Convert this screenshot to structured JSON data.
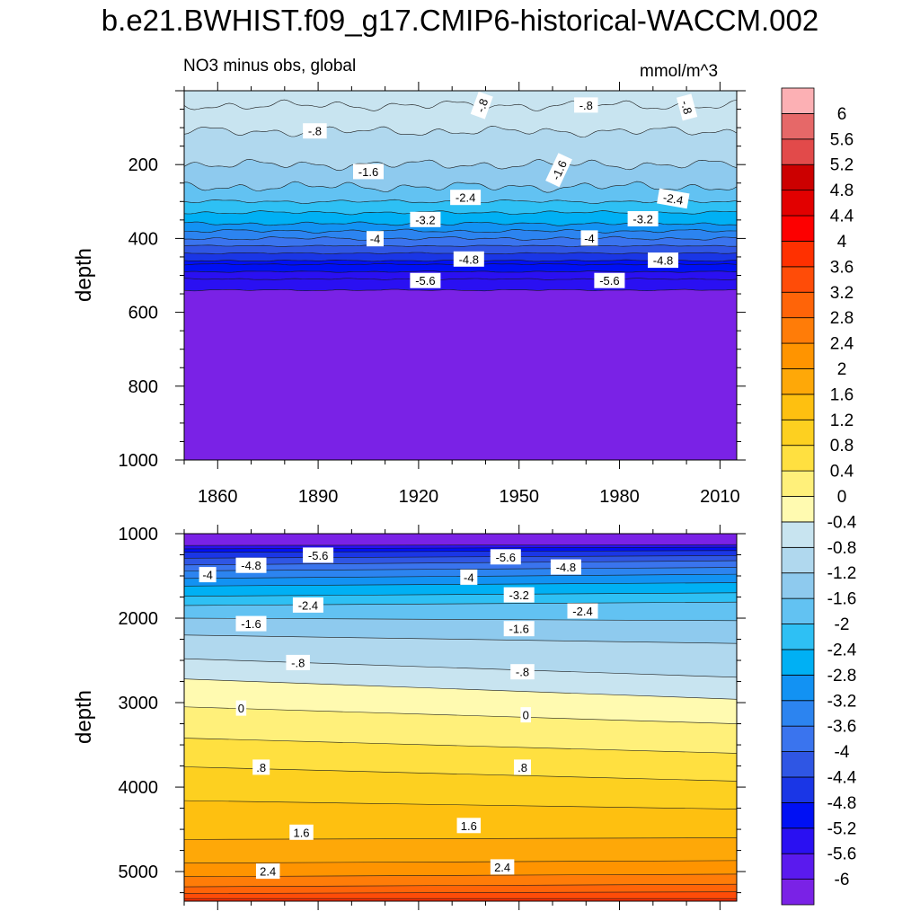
{
  "title": "b.e21.BWHIST.f09_g17.CMIP6-historical-WACCM.002",
  "subtitle_left": "NO3 minus obs, global",
  "subtitle_right": "mmol/m^3",
  "colorbar": {
    "colors": [
      "#7a22e6",
      "#5a1aee",
      "#2a10f2",
      "#0010f4",
      "#1a36e6",
      "#2f56e4",
      "#3a74ee",
      "#2c84f0",
      "#1292f3",
      "#00b0f4",
      "#2ec0f4",
      "#62c2f2",
      "#8ecaee",
      "#b0d8ee",
      "#c8e4f0",
      "#fffab0",
      "#fff07a",
      "#ffe040",
      "#fdd020",
      "#fec010",
      "#fea808",
      "#ff9400",
      "#ff7c08",
      "#ff6408",
      "#ff4c08",
      "#ff3000",
      "#fd0000",
      "#e20000",
      "#cc0000",
      "#e24a4a",
      "#e66868",
      "#fcb0b4"
    ],
    "labels": [
      "-6",
      "-5.6",
      "-5.2",
      "-4.8",
      "-4.4",
      "-4",
      "-3.6",
      "-3.2",
      "-2.8",
      "-2.4",
      "-2",
      "-1.6",
      "-1.2",
      "-0.8",
      "-0.4",
      "0",
      "0.4",
      "0.8",
      "1.2",
      "1.6",
      "2",
      "2.4",
      "2.8",
      "3.2",
      "3.6",
      "4",
      "4.4",
      "4.8",
      "5.2",
      "5.6",
      "6"
    ]
  },
  "chart_data": [
    {
      "type": "contour",
      "panel": "top",
      "title": "NO3 minus obs, global",
      "units": "mmol/m^3",
      "xlabel": "",
      "ylabel": "depth",
      "xlim": [
        1850,
        2015
      ],
      "ylim": [
        1000,
        0
      ],
      "x_ticks": [
        1860,
        1890,
        1920,
        1950,
        1980,
        2010
      ],
      "y_ticks": [
        200,
        400,
        600,
        800,
        1000
      ],
      "depth_profile": {
        "depth": [
          0,
          40,
          110,
          200,
          260,
          300,
          330,
          360,
          380,
          400,
          420,
          440,
          460,
          470,
          490,
          510,
          540,
          1000
        ],
        "value": [
          -0.6,
          -0.8,
          -1.2,
          -1.6,
          -2.0,
          -2.4,
          -2.8,
          -3.2,
          -3.6,
          -4.0,
          -4.4,
          -4.8,
          -5.0,
          -5.2,
          -5.4,
          -5.6,
          -6.2,
          -6.2
        ]
      },
      "contour_labels": [
        {
          "text": "-.8",
          "year": 1889,
          "depth": 110,
          "angle": 0
        },
        {
          "text": "-.8",
          "year": 1939,
          "depth": 40,
          "angle": -70
        },
        {
          "text": "-.8",
          "year": 1970,
          "depth": 40,
          "angle": 0
        },
        {
          "text": "-.8",
          "year": 2000,
          "depth": 45,
          "angle": 75
        },
        {
          "text": "-1.6",
          "year": 1905,
          "depth": 220,
          "angle": 0
        },
        {
          "text": "-1.6",
          "year": 1962,
          "depth": 215,
          "angle": -65
        },
        {
          "text": "-2.4",
          "year": 1934,
          "depth": 290,
          "angle": 0
        },
        {
          "text": "-2.4",
          "year": 1996,
          "depth": 293,
          "angle": 10
        },
        {
          "text": "-3.2",
          "year": 1922,
          "depth": 350,
          "angle": 0
        },
        {
          "text": "-3.2",
          "year": 1987,
          "depth": 348,
          "angle": 0
        },
        {
          "text": "-4",
          "year": 1907,
          "depth": 402,
          "angle": 0
        },
        {
          "text": "-4",
          "year": 1971,
          "depth": 400,
          "angle": 0
        },
        {
          "text": "-4.8",
          "year": 1935,
          "depth": 457,
          "angle": 0
        },
        {
          "text": "-4.8",
          "year": 1993,
          "depth": 460,
          "angle": 0
        },
        {
          "text": "-5.6",
          "year": 1922,
          "depth": 515,
          "angle": 0
        },
        {
          "text": "-5.6",
          "year": 1977,
          "depth": 515,
          "angle": 0
        }
      ]
    },
    {
      "type": "contour",
      "panel": "bottom",
      "title": "",
      "xlabel": "",
      "ylabel": "depth",
      "xlim": [
        1850,
        2015
      ],
      "ylim": [
        5350,
        1000
      ],
      "y_ticks": [
        1000,
        2000,
        3000,
        4000,
        5000
      ],
      "contour_depths": {
        "start": [
          1140,
          1180,
          1220,
          1290,
          1370,
          1440,
          1530,
          1620,
          1740,
          1850,
          2000,
          2200,
          2480,
          2720,
          3050,
          3420,
          3760,
          4160,
          4620,
          4900,
          5060,
          5180,
          5260,
          5320
        ],
        "end": [
          1130,
          1160,
          1200,
          1260,
          1320,
          1400,
          1480,
          1580,
          1700,
          1810,
          2030,
          2300,
          2700,
          2960,
          3250,
          3600,
          3930,
          4260,
          4600,
          4870,
          5030,
          5150,
          5240,
          5320
        ],
        "value_between": [
          -6.2,
          -5.6,
          -5.2,
          -4.8,
          -4.4,
          -4.0,
          -3.6,
          -3.2,
          -2.8,
          -2.4,
          -2.0,
          -1.6,
          -1.2,
          -0.8,
          -0.4,
          0.2,
          0.6,
          1.0,
          1.4,
          1.8,
          2.2,
          2.6,
          3.0,
          3.4,
          3.8
        ]
      },
      "contour_labels": [
        {
          "text": "-5.6",
          "year": 1890,
          "depth": 1260,
          "angle": 0
        },
        {
          "text": "-5.6",
          "year": 1946,
          "depth": 1280,
          "angle": 0
        },
        {
          "text": "-4.8",
          "year": 1870,
          "depth": 1380,
          "angle": 0
        },
        {
          "text": "-4.8",
          "year": 1964,
          "depth": 1400,
          "angle": 0
        },
        {
          "text": "-4",
          "year": 1857,
          "depth": 1490,
          "angle": 0
        },
        {
          "text": "-4",
          "year": 1935,
          "depth": 1520,
          "angle": 0
        },
        {
          "text": "-3.2",
          "year": 1950,
          "depth": 1730,
          "angle": 0
        },
        {
          "text": "-2.4",
          "year": 1887,
          "depth": 1850,
          "angle": 0
        },
        {
          "text": "-2.4",
          "year": 1969,
          "depth": 1920,
          "angle": 0
        },
        {
          "text": "-1.6",
          "year": 1870,
          "depth": 2070,
          "angle": 0
        },
        {
          "text": "-1.6",
          "year": 1950,
          "depth": 2130,
          "angle": 0
        },
        {
          "text": "-.8",
          "year": 1884,
          "depth": 2530,
          "angle": 0
        },
        {
          "text": "-.8",
          "year": 1951,
          "depth": 2640,
          "angle": 0
        },
        {
          "text": "0",
          "year": 1867,
          "depth": 3070,
          "angle": 0
        },
        {
          "text": "0",
          "year": 1952,
          "depth": 3150,
          "angle": 0
        },
        {
          "text": "1.6",
          "year": 1885,
          "depth": 4540,
          "angle": 0
        },
        {
          "text": "1.6",
          "year": 1935,
          "depth": 4460,
          "angle": 0
        },
        {
          "text": ".8",
          "year": 1873,
          "depth": 3770,
          "angle": 0
        },
        {
          "text": ".8",
          "year": 1951,
          "depth": 3770,
          "angle": 0
        },
        {
          "text": "2.4",
          "year": 1875,
          "depth": 5000,
          "angle": 0
        },
        {
          "text": "2.4",
          "year": 1945,
          "depth": 4950,
          "angle": 0
        }
      ]
    }
  ]
}
